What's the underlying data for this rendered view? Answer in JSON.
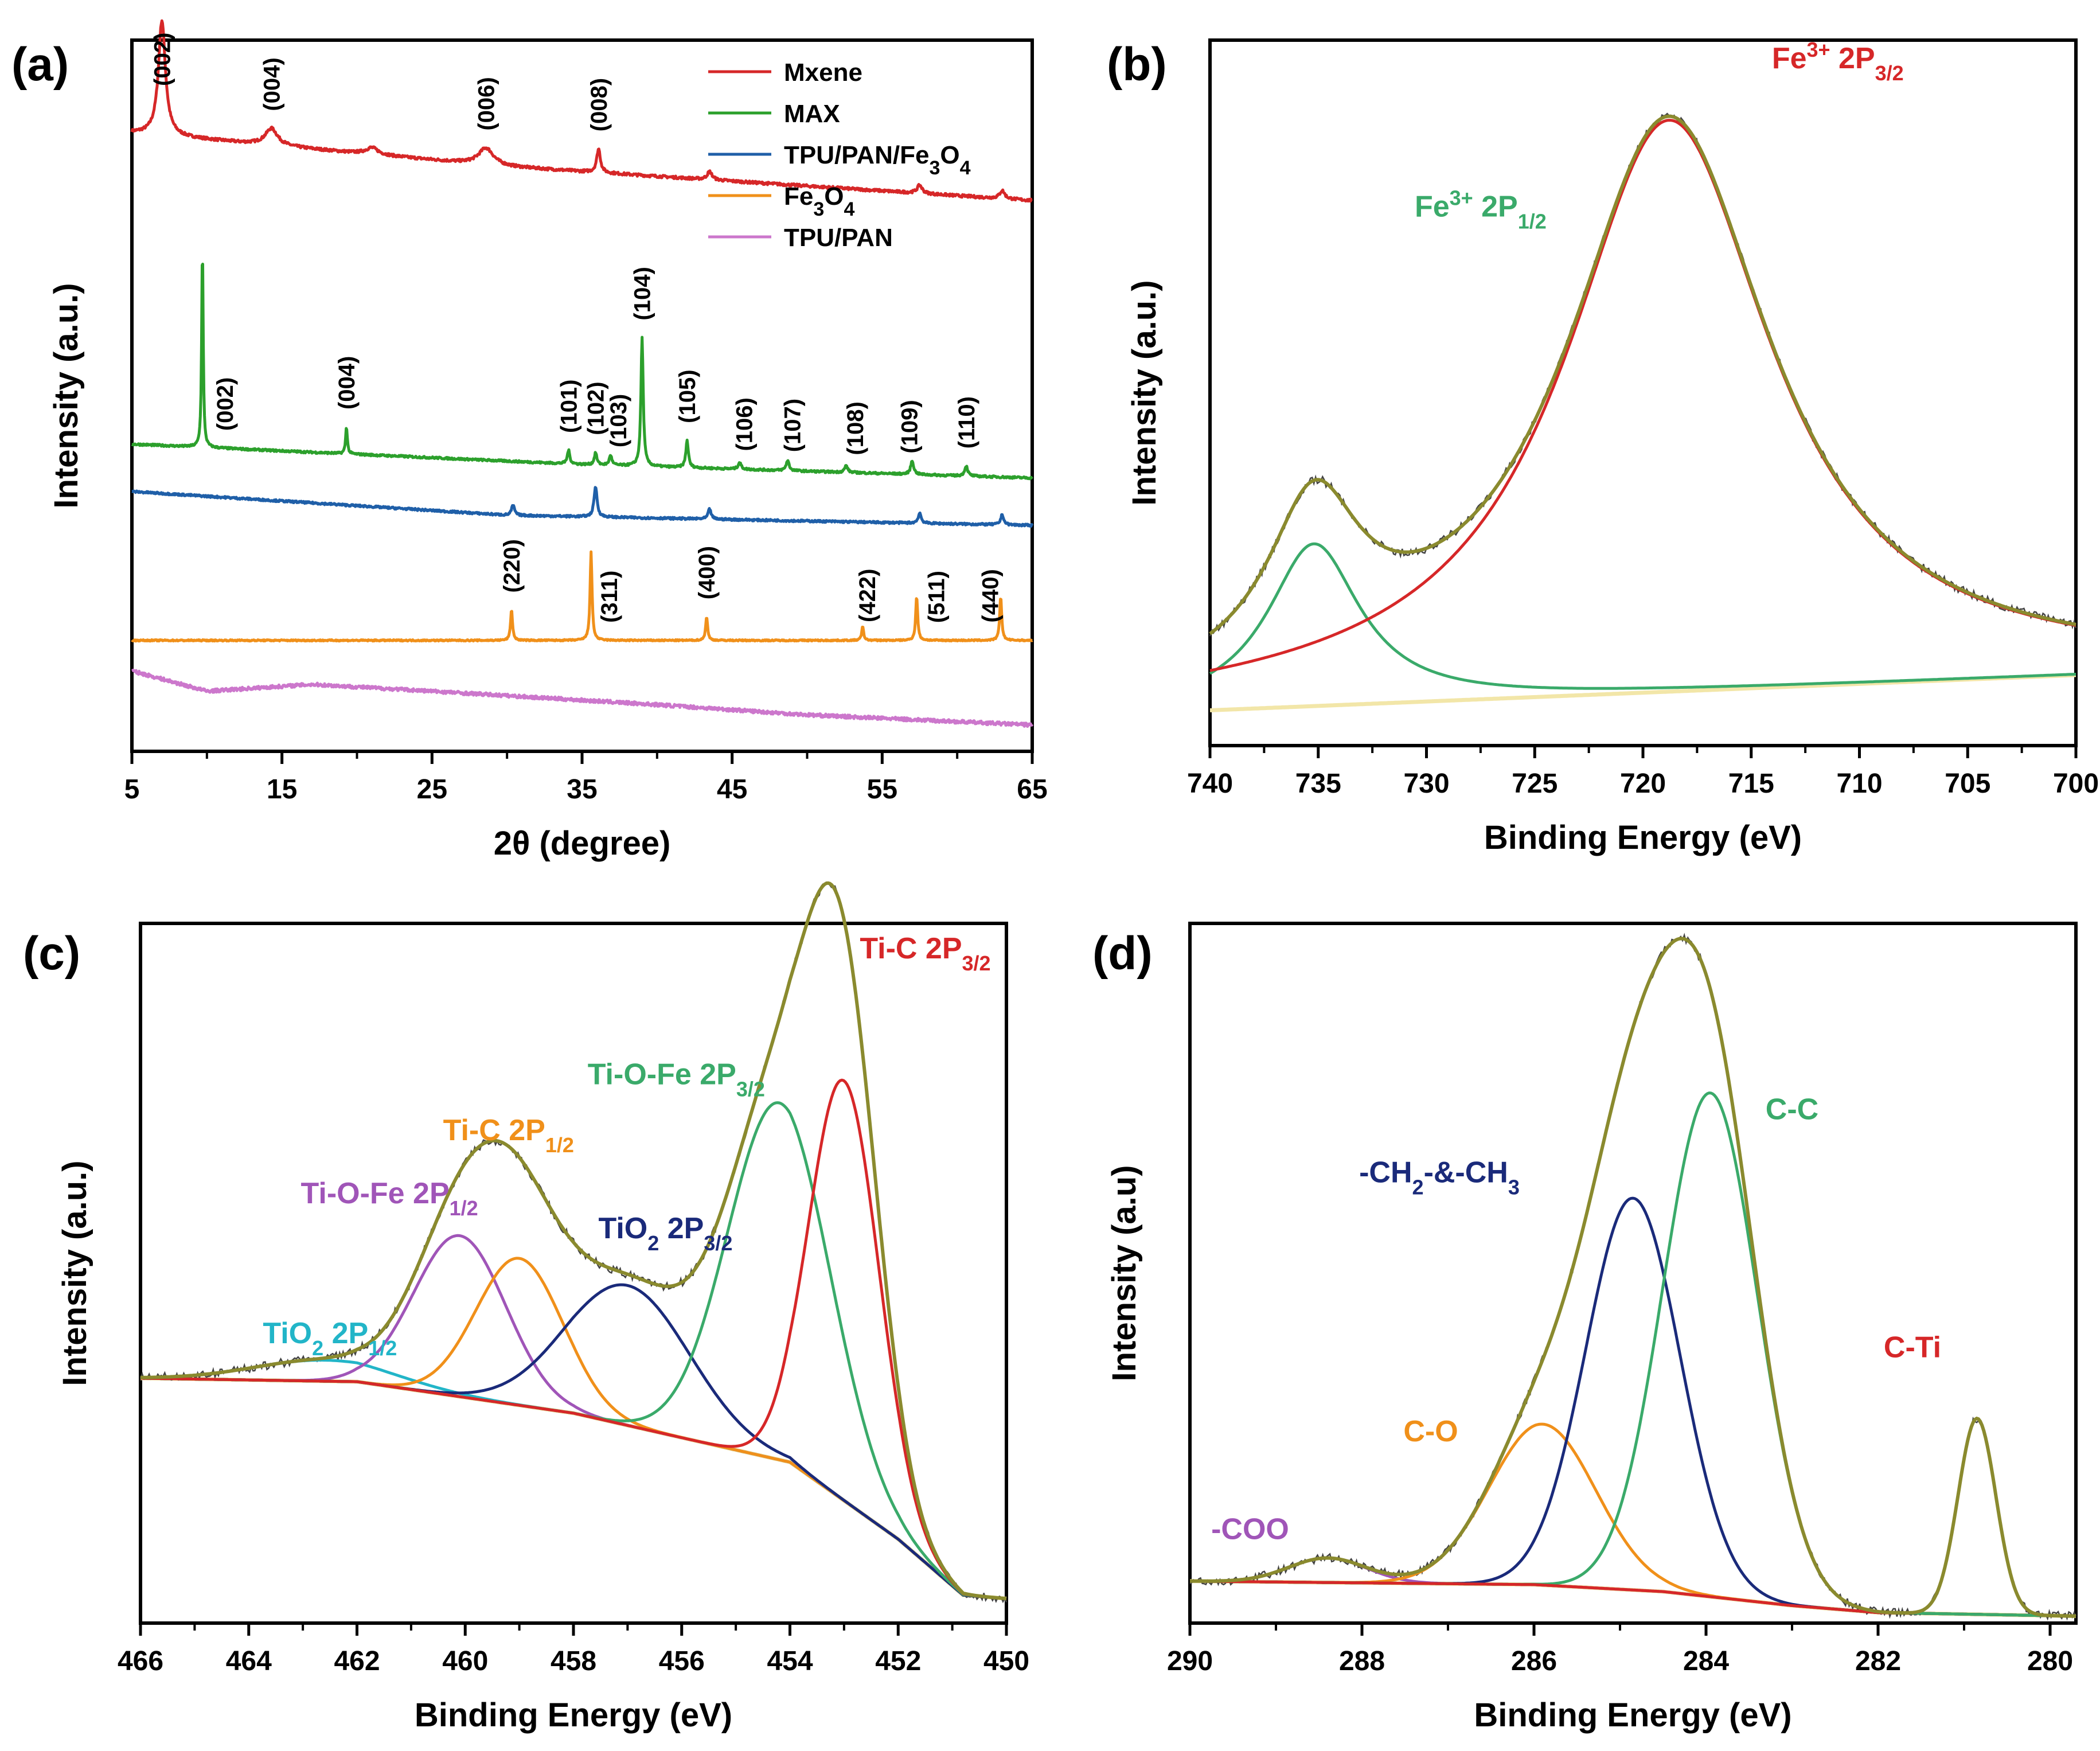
{
  "chart_data": [
    {
      "panel": "(a)",
      "type": "line",
      "xlabel": "2θ (degree)",
      "ylabel": "Intensity (a.u.)",
      "xlim": [
        5,
        65
      ],
      "xticks": [
        5,
        15,
        25,
        35,
        45,
        55,
        65
      ],
      "series": [
        {
          "name": "Mxene",
          "color": "#d62728",
          "offset": 0.78,
          "noise": 0.004,
          "baseline": [
            [
              5,
              0.1
            ],
            [
              30,
              0.05
            ],
            [
              65,
              0.0
            ]
          ],
          "peaks": [
            [
              7.0,
              0.17,
              0.28
            ],
            [
              14.3,
              0.025,
              0.5
            ],
            [
              21.0,
              0.01,
              0.5
            ],
            [
              28.6,
              0.025,
              0.6
            ],
            [
              36.1,
              0.035,
              0.15
            ],
            [
              43.5,
              0.012,
              0.2
            ],
            [
              57.5,
              0.012,
              0.2
            ],
            [
              63.0,
              0.012,
              0.2
            ]
          ],
          "labels": [
            {
              "text": "(002)",
              "x": 7.0
            },
            {
              "text": "(004)",
              "x": 14.3
            },
            {
              "text": "(006)",
              "x": 28.6
            },
            {
              "text": "(008)",
              "x": 36.1
            }
          ]
        },
        {
          "name": "MAX",
          "color": "#2ca02c",
          "offset": 0.37,
          "noise": 0.003,
          "baseline": [
            [
              5,
              0.05
            ],
            [
              35,
              0.02
            ],
            [
              65,
              0.0
            ]
          ],
          "peaks": [
            [
              9.7,
              0.3,
              0.06
            ],
            [
              19.3,
              0.04,
              0.07
            ],
            [
              34.1,
              0.02,
              0.1
            ],
            [
              35.9,
              0.018,
              0.1
            ],
            [
              36.9,
              0.015,
              0.1
            ],
            [
              39.0,
              0.19,
              0.09
            ],
            [
              42.0,
              0.04,
              0.1
            ],
            [
              45.5,
              0.01,
              0.12
            ],
            [
              48.7,
              0.015,
              0.12
            ],
            [
              52.6,
              0.01,
              0.12
            ],
            [
              57.0,
              0.02,
              0.12
            ],
            [
              60.6,
              0.015,
              0.12
            ]
          ],
          "labels": [
            {
              "text": "(002)",
              "x": 11.2
            },
            {
              "text": "(004)",
              "x": 19.3
            },
            {
              "text": "(101)",
              "x": 34.1
            },
            {
              "text": "(102)",
              "x": 35.9
            },
            {
              "text": "(103)",
              "x": 37.4
            },
            {
              "text": "(104)",
              "x": 39.0
            },
            {
              "text": "(105)",
              "x": 42.0
            },
            {
              "text": "(106)",
              "x": 45.8
            },
            {
              "text": "(107)",
              "x": 49.0
            },
            {
              "text": "(108)",
              "x": 53.2
            },
            {
              "text": "(109)",
              "x": 56.8
            },
            {
              "text": "(110)",
              "x": 60.6
            }
          ]
        },
        {
          "name": "TPU/PAN/Fe3O4",
          "color": "#1f5fa8",
          "offset": 0.3,
          "noise": 0.003,
          "baseline": [
            [
              5,
              0.05
            ],
            [
              30,
              0.015
            ],
            [
              65,
              0.0
            ]
          ],
          "peaks": [
            [
              30.4,
              0.015,
              0.12
            ],
            [
              35.9,
              0.045,
              0.12
            ],
            [
              43.5,
              0.015,
              0.12
            ],
            [
              57.5,
              0.015,
              0.12
            ],
            [
              63.0,
              0.015,
              0.12
            ]
          ],
          "labels": []
        },
        {
          "name": "Fe3O4",
          "color": "#f0901a",
          "offset": 0.13,
          "noise": 0.002,
          "baseline": [
            [
              5,
              0.0
            ],
            [
              65,
              0.0
            ]
          ],
          "peaks": [
            [
              30.3,
              0.045,
              0.08
            ],
            [
              35.6,
              0.13,
              0.08
            ],
            [
              43.3,
              0.035,
              0.08
            ],
            [
              53.7,
              0.02,
              0.08
            ],
            [
              57.3,
              0.065,
              0.08
            ],
            [
              62.9,
              0.065,
              0.08
            ]
          ],
          "labels": [
            {
              "text": "(220)",
              "x": 30.3
            },
            {
              "text": "(311)",
              "x": 36.8
            },
            {
              "text": "(400)",
              "x": 43.3
            },
            {
              "text": "(422)",
              "x": 54.0
            },
            {
              "text": "(511)",
              "x": 58.6
            },
            {
              "text": "(440)",
              "x": 62.2
            }
          ]
        },
        {
          "name": "TPU/PAN",
          "color": "#cc77cc",
          "offset": 0.0,
          "noise": 0.005,
          "baseline": [
            [
              5,
              0.085
            ],
            [
              10,
              0.055
            ],
            [
              17,
              0.065
            ],
            [
              25,
              0.055
            ],
            [
              40,
              0.035
            ],
            [
              50,
              0.02
            ],
            [
              65,
              0.005
            ]
          ],
          "peaks": [],
          "labels": []
        }
      ],
      "legend": [
        "Mxene",
        "MAX",
        "TPU/PAN/Fe3O4",
        "Fe3O4",
        "TPU/PAN"
      ]
    },
    {
      "panel": "(b)",
      "type": "line",
      "xlabel": "Binding Energy (eV)",
      "ylabel": "Intensity (a.u.)",
      "xlim": [
        740,
        700
      ],
      "xticks": [
        740,
        735,
        730,
        725,
        720,
        715,
        710,
        705,
        700
      ],
      "background": [
        [
          740,
          0.05
        ],
        [
          700,
          0.1
        ]
      ],
      "components": [
        {
          "name": "Fe3+ 2P1/2",
          "color": "#3aaa6a",
          "center": 735.2,
          "height": 0.23,
          "width": 2.6
        },
        {
          "name": "Fe3+ 2P3/2",
          "color": "#d62728",
          "center": 718.8,
          "height": 0.81,
          "width": 5.8
        }
      ],
      "envelope_color": "#8a8a2e",
      "background_color": "#f2e6a8",
      "annotations": [
        {
          "main": "Fe",
          "sup": "3+",
          "mid": " 2P",
          "sub": "3/2",
          "color": "#d62728",
          "x": 711,
          "y": 0.96
        },
        {
          "main": "Fe",
          "sup": "3+",
          "mid": " 2P",
          "sub": "1/2",
          "color": "#3aaa6a",
          "x": 727.5,
          "y": 0.75
        }
      ]
    },
    {
      "panel": "(c)",
      "type": "line",
      "xlabel": "Binding Energy (eV)",
      "ylabel": "Intensity (a.u.)",
      "xlim": [
        466,
        450
      ],
      "xticks": [
        466,
        464,
        462,
        460,
        458,
        456,
        454,
        452,
        450
      ],
      "background": [
        [
          466,
          0.35
        ],
        [
          462,
          0.345
        ],
        [
          458,
          0.3
        ],
        [
          454,
          0.23
        ],
        [
          452,
          0.12
        ],
        [
          450.8,
          0.04
        ],
        [
          450,
          0.035
        ]
      ],
      "components": [
        {
          "name": "TiO2 2P1/2",
          "color": "#22b5c8",
          "center": 462.6,
          "height": 0.03,
          "width": 1.3
        },
        {
          "name": "Ti-O-Fe 2P1/2",
          "color": "#a055b8",
          "center": 460.1,
          "height": 0.23,
          "width": 0.85
        },
        {
          "name": "Ti-C 2P1/2",
          "color": "#f0901a",
          "center": 459.0,
          "height": 0.21,
          "width": 0.8
        },
        {
          "name": "TiO2 2P3/2",
          "color": "#1a2a7a",
          "center": 457.0,
          "height": 0.2,
          "width": 1.15
        },
        {
          "name": "Ti-O-Fe 2P3/2",
          "color": "#3aaa6a",
          "center": 454.2,
          "height": 0.51,
          "width": 0.95
        },
        {
          "name": "Ti-C 2P3/2",
          "color": "#d62728",
          "center": 453.0,
          "height": 0.6,
          "width": 0.65
        }
      ],
      "envelope_color": "#8a8a2e",
      "background_color": "#f2e6a8",
      "annotations": [
        {
          "main": "Ti-C 2P",
          "sup": "",
          "mid": "",
          "sub": "3/2",
          "color": "#d62728",
          "x": 451.5,
          "y": 0.95
        },
        {
          "main": "Ti-O-Fe 2P",
          "sup": "",
          "mid": "",
          "sub": "3/2",
          "color": "#3aaa6a",
          "x": 456.1,
          "y": 0.77
        },
        {
          "main": "Ti-C 2P",
          "sup": "",
          "mid": "",
          "sub": "1/2",
          "color": "#f0901a",
          "x": 459.2,
          "y": 0.69
        },
        {
          "main": "Ti-O-Fe 2P",
          "sup": "",
          "mid": "",
          "sub": "1/2",
          "color": "#a055b8",
          "x": 461.4,
          "y": 0.6
        },
        {
          "main": "TiO",
          "sub2": "2",
          "mid": " 2P",
          "sup": "",
          "sub": "3/2",
          "color": "#1a2a7a",
          "x": 456.3,
          "y": 0.55
        },
        {
          "main": "TiO",
          "sub2": "2",
          "mid": " 2P",
          "sup": "",
          "sub": "1/2",
          "color": "#22b5c8",
          "x": 462.5,
          "y": 0.4
        }
      ]
    },
    {
      "panel": "(d)",
      "type": "line",
      "xlabel": "Binding Energy (eV)",
      "ylabel": "Intensity (a.u)",
      "xlim": [
        290,
        279.7
      ],
      "xticks": [
        290,
        288,
        286,
        284,
        282,
        280
      ],
      "background": [
        [
          290,
          0.06
        ],
        [
          286,
          0.055
        ],
        [
          284.5,
          0.045
        ],
        [
          283,
          0.025
        ],
        [
          282,
          0.015
        ],
        [
          279.7,
          0.01
        ]
      ],
      "ctic_base": [
        [
          290,
          0.06
        ],
        [
          286,
          0.05
        ],
        [
          283.5,
          0.04
        ],
        [
          282.3,
          0.05
        ],
        [
          281.8,
          0.08
        ],
        [
          279.7,
          0.03
        ]
      ],
      "components": [
        {
          "name": "-COO",
          "color": "#a055b8",
          "center": 288.4,
          "height": 0.035,
          "width": 0.45
        },
        {
          "name": "C-O",
          "color": "#f0901a",
          "center": 285.9,
          "height": 0.23,
          "width": 0.62
        },
        {
          "name": "-CH2-&-CH3",
          "color": "#1a2a7a",
          "center": 284.85,
          "height": 0.56,
          "width": 0.55
        },
        {
          "name": "C-C",
          "color": "#3aaa6a",
          "center": 283.95,
          "height": 0.72,
          "width": 0.55
        },
        {
          "name": "C-Ti",
          "color": "#d62728",
          "center": 280.85,
          "height": 0.28,
          "width": 0.22
        }
      ],
      "envelope_color": "#8a8a2e",
      "background_color": "#f2e6a8",
      "annotations": [
        {
          "main": "C-C",
          "sup": "",
          "mid": "",
          "sub": "",
          "color": "#3aaa6a",
          "x": 283.0,
          "y": 0.72
        },
        {
          "main": "-CH",
          "sub2": "2",
          "mid": "-&-CH",
          "sub": "3",
          "sup": "",
          "color": "#1a2a7a",
          "x": 287.1,
          "y": 0.63
        },
        {
          "main": "C-Ti",
          "sup": "",
          "mid": "",
          "sub": "",
          "color": "#d62728",
          "x": 281.6,
          "y": 0.38
        },
        {
          "main": "C-O",
          "sup": "",
          "mid": "",
          "sub": "",
          "color": "#f0901a",
          "x": 287.2,
          "y": 0.26
        },
        {
          "main": "-COO",
          "sup": "",
          "mid": "",
          "sub": "",
          "color": "#a055b8",
          "x": 289.3,
          "y": 0.12
        }
      ]
    }
  ]
}
